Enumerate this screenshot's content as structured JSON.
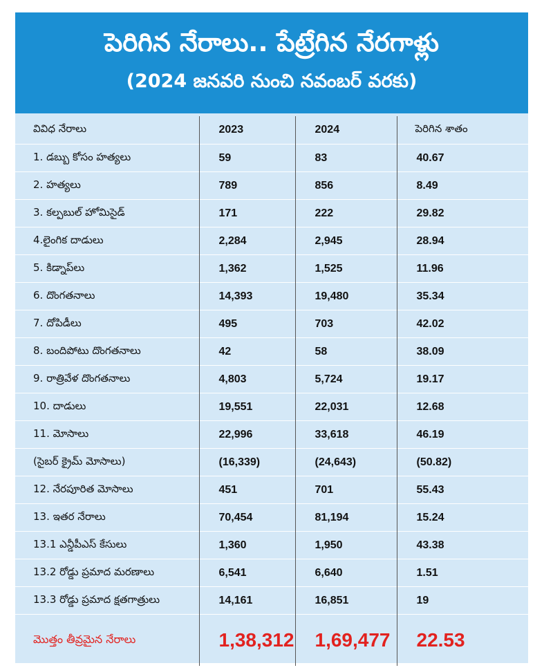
{
  "header": {
    "title": "పెరిగిన నేరాలు.. పేట్రేగిన నేరగాళ్లు",
    "subtitle": "(2024 జనవరి నుంచి నవంబర్ వరకు)"
  },
  "table": {
    "columns": [
      "వివిధ నేరాలు",
      "2023",
      "2024",
      "పెరిగిన శాతం"
    ],
    "rows": [
      {
        "label": "1. డబ్బు కోసం హత్యలు",
        "y2023": "59",
        "y2024": "83",
        "pct": "40.67"
      },
      {
        "label": "2. హత్యలు",
        "y2023": "789",
        "y2024": "856",
        "pct": "8.49"
      },
      {
        "label": "3. కల్పబుల్ హోమిసైడ్",
        "y2023": "171",
        "y2024": "222",
        "pct": "29.82"
      },
      {
        "label": "4.లైంగిక దాడులు",
        "y2023": "2,284",
        "y2024": "2,945",
        "pct": "28.94"
      },
      {
        "label": "5. కిడ్నాప్‌లు",
        "y2023": "1,362",
        "y2024": "1,525",
        "pct": "11.96"
      },
      {
        "label": "6. దొంగతనాలు",
        "y2023": "14,393",
        "y2024": "19,480",
        "pct": "35.34"
      },
      {
        "label": "7. దోపిడీలు",
        "y2023": "495",
        "y2024": "703",
        "pct": "42.02"
      },
      {
        "label": "8. బందిపోటు దొంగతనాలు",
        "y2023": "42",
        "y2024": "58",
        "pct": "38.09"
      },
      {
        "label": "9. రాత్రివేళ దొంగతనాలు",
        "y2023": "4,803",
        "y2024": "5,724",
        "pct": "19.17"
      },
      {
        "label": "10. దాడులు",
        "y2023": "19,551",
        "y2024": "22,031",
        "pct": "12.68"
      },
      {
        "label": "11. మోసాలు",
        "y2023": "22,996",
        "y2024": "33,618",
        "pct": "46.19"
      },
      {
        "label": "(సైబర్ క్రైమ్ మోసాలు)",
        "y2023": "(16,339)",
        "y2024": "(24,643)",
        "pct": "(50.82)"
      },
      {
        "label": "12. నేరపూరిత మోసాలు",
        "y2023": "451",
        "y2024": "701",
        "pct": "55.43"
      },
      {
        "label": "13. ఇతర నేరాలు",
        "y2023": "70,454",
        "y2024": "81,194",
        "pct": "15.24"
      },
      {
        "label": "13.1 ఎన్డీపీఎస్ కేసులు",
        "y2023": "1,360",
        "y2024": "1,950",
        "pct": "43.38"
      },
      {
        "label": "13.2 రోడ్డు ప్రమాద మరణాలు",
        "y2023": "6,541",
        "y2024": "6,640",
        "pct": "1.51"
      },
      {
        "label": "13.3 రోడ్డు ప్రమాద క్షతగాత్రులు",
        "y2023": "14,161",
        "y2024": "16,851",
        "pct": "19"
      }
    ],
    "total": {
      "label": "మొత్తం తీవ్రమైన నేరాలు",
      "y2023": "1,38,312",
      "y2024": "1,69,477",
      "pct": "22.53"
    }
  },
  "colors": {
    "header_bg": "#1b8fd3",
    "table_bg": "#d4e8f7",
    "total_text": "#e2221f"
  }
}
